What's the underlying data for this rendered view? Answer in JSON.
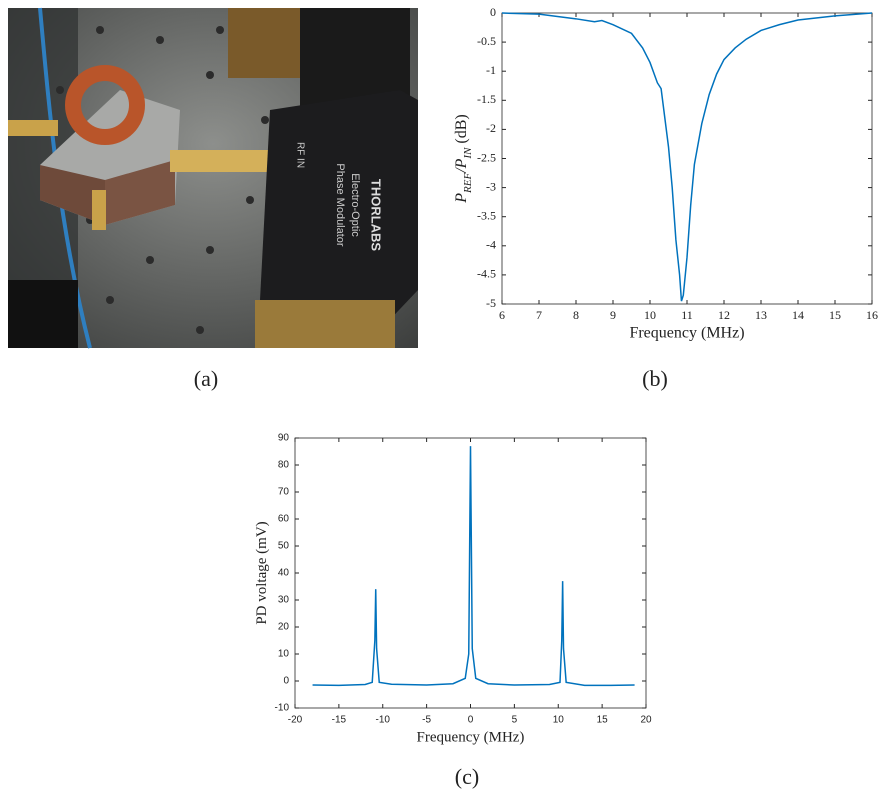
{
  "photo": {
    "brand": "THORLABS",
    "line1": "Electro-Optic",
    "line2": "Phase Modulator",
    "port": "RF IN"
  },
  "captions": [
    "(a)",
    "(b)",
    "(c)"
  ],
  "chart_data": [
    {
      "type": "line",
      "xlabel": "Frequency (MHz)",
      "ylabel": [
        "P",
        "REF",
        "/P",
        "IN",
        " (dB)"
      ],
      "color": "#0072bd",
      "x": [
        6,
        7,
        8,
        8.5,
        8.7,
        9,
        9.5,
        9.8,
        10,
        10.2,
        10.3,
        10.4,
        10.5,
        10.6,
        10.7,
        10.8,
        10.85,
        10.9,
        11,
        11.1,
        11.2,
        11.4,
        11.6,
        11.8,
        12,
        12.3,
        12.6,
        13,
        13.5,
        14,
        15,
        16
      ],
      "values": [
        0,
        -0.02,
        -0.1,
        -0.15,
        -0.13,
        -0.2,
        -0.35,
        -0.6,
        -0.85,
        -1.2,
        -1.3,
        -1.8,
        -2.3,
        -3,
        -3.9,
        -4.5,
        -4.95,
        -4.85,
        -4.2,
        -3.3,
        -2.6,
        -1.9,
        -1.4,
        -1.05,
        -0.8,
        -0.6,
        -0.45,
        -0.3,
        -0.2,
        -0.12,
        -0.05,
        0
      ],
      "xlim": [
        6,
        16
      ],
      "ylim": [
        -5,
        0
      ],
      "xticks": [
        6,
        7,
        8,
        9,
        10,
        11,
        12,
        13,
        14,
        15,
        16
      ],
      "yticks": [
        0,
        -0.5,
        -1,
        -1.5,
        -2,
        -2.5,
        -3,
        -3.5,
        -4,
        -4.5,
        -5
      ]
    },
    {
      "type": "line",
      "xlabel": "Frequency (MHz)",
      "ylabel": [
        "PD voltage (mV)"
      ],
      "color": "#0072bd",
      "x": [
        -18,
        -15,
        -12,
        -11.2,
        -10.9,
        -10.8,
        -10.7,
        -10.4,
        -9,
        -5,
        -2,
        -0.6,
        -0.2,
        0,
        0.2,
        0.6,
        2,
        5,
        9,
        10.2,
        10.4,
        10.5,
        10.6,
        10.9,
        13,
        16,
        18.7
      ],
      "values": [
        -1.5,
        -1.6,
        -1.3,
        -0.5,
        15,
        34,
        12,
        -0.5,
        -1.2,
        -1.5,
        -1,
        1,
        10,
        87,
        12,
        1,
        -1,
        -1.5,
        -1.3,
        -0.5,
        15,
        37,
        12,
        -0.5,
        -1.6,
        -1.6,
        -1.5
      ],
      "xlim": [
        -20,
        20
      ],
      "ylim": [
        -10,
        90
      ],
      "xticks": [
        -20,
        -15,
        -10,
        -5,
        0,
        5,
        10,
        15,
        20
      ],
      "yticks": [
        -10,
        0,
        10,
        20,
        30,
        40,
        50,
        60,
        70,
        80,
        90
      ]
    }
  ]
}
